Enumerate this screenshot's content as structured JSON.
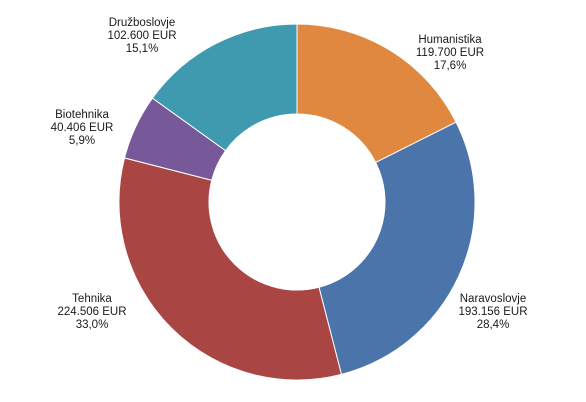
{
  "chart_data": {
    "type": "pie",
    "variant": "donut",
    "title": "",
    "categories": [
      "Humanistika",
      "Naravoslovje",
      "Tehnika",
      "Biotehnika",
      "Družboslovje"
    ],
    "values": [
      119700,
      193156,
      224506,
      40406,
      102600
    ],
    "value_labels": [
      "119.700 EUR",
      "193.156 EUR",
      "224.506 EUR",
      "40.406 EUR",
      "102.600 EUR"
    ],
    "percent_labels": [
      "17,6%",
      "28,4%",
      "33,0%",
      "5,9%",
      "15,1%"
    ],
    "colors": [
      "#e0883f",
      "#4a74aa",
      "#a94644",
      "#77599a",
      "#3f9ab0"
    ],
    "legend": "none",
    "start_angle_deg": 0,
    "direction": "clockwise"
  }
}
